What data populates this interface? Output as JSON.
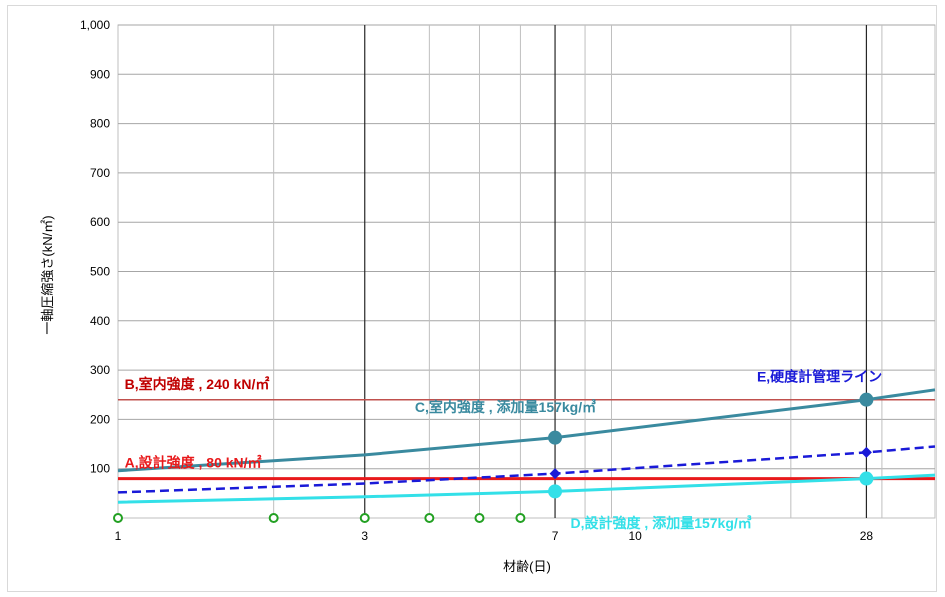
{
  "chart_data": {
    "type": "line",
    "xlabel": "材齢(日)",
    "ylabel": "一軸圧縮強さ(kN/㎡)",
    "x_scale": "log",
    "xlim": [
      1,
      38
    ],
    "ylim": [
      0,
      1000
    ],
    "y_ticks": [
      {
        "value": 100,
        "label": "100"
      },
      {
        "value": 200,
        "label": "200"
      },
      {
        "value": 300,
        "label": "300"
      },
      {
        "value": 400,
        "label": "400"
      },
      {
        "value": 500,
        "label": "500"
      },
      {
        "value": 600,
        "label": "600"
      },
      {
        "value": 700,
        "label": "700"
      },
      {
        "value": 800,
        "label": "800"
      },
      {
        "value": 900,
        "label": "900"
      },
      {
        "value": 1000,
        "label": "1,000"
      }
    ],
    "x_ticks": [
      {
        "value": 1,
        "label": "1"
      },
      {
        "value": 3,
        "label": "3"
      },
      {
        "value": 7,
        "label": "7"
      },
      {
        "value": 10,
        "label": "10"
      },
      {
        "value": 28,
        "label": "28"
      }
    ],
    "x_minor_grid": [
      2,
      4,
      5,
      6,
      8,
      9,
      20,
      30
    ],
    "x_major_grid": [
      3,
      7,
      28
    ],
    "grid": true,
    "series": [
      {
        "id": "A",
        "name": "A,設計強度 , 80 kN/㎡",
        "color": "#e8191b",
        "style": "solid",
        "width": 3,
        "points": [
          [
            1,
            80
          ],
          [
            38,
            80
          ]
        ]
      },
      {
        "id": "B",
        "name": "B,室内強度 , 240 kN/㎡",
        "color": "#c0504d",
        "style": "solid",
        "width": 1.5,
        "points": [
          [
            1,
            240
          ],
          [
            38,
            240
          ]
        ]
      },
      {
        "id": "C",
        "name": "C,室内強度 , 添加量157kg/㎥",
        "color": "#3a8a9f",
        "style": "solid",
        "width": 3,
        "points": [
          [
            1,
            96
          ],
          [
            3,
            128
          ],
          [
            7,
            163
          ],
          [
            28,
            240
          ],
          [
            38,
            260
          ]
        ],
        "markers": [
          [
            7,
            163
          ],
          [
            28,
            240
          ]
        ],
        "marker": "circle"
      },
      {
        "id": "D",
        "name": "D,設計強度 , 添加量157kg/㎥",
        "color": "#33e0e8",
        "style": "solid",
        "width": 3,
        "points": [
          [
            1,
            32
          ],
          [
            3,
            43
          ],
          [
            7,
            54
          ],
          [
            28,
            80
          ],
          [
            38,
            87
          ]
        ],
        "markers": [
          [
            7,
            54
          ],
          [
            28,
            80
          ]
        ],
        "marker": "circle"
      },
      {
        "id": "E",
        "name": "E,硬度計管理ライン",
        "color": "#1a1ad8",
        "style": "dashed",
        "width": 2.5,
        "points": [
          [
            1,
            52
          ],
          [
            3,
            70
          ],
          [
            7,
            90
          ],
          [
            28,
            133
          ],
          [
            38,
            145
          ]
        ],
        "markers": [
          [
            7,
            90
          ],
          [
            28,
            133
          ]
        ],
        "marker": "diamond"
      },
      {
        "id": "X",
        "name": "",
        "color": "#22a022",
        "style": "none",
        "points": [
          [
            1,
            0
          ],
          [
            2,
            0
          ],
          [
            3,
            0
          ],
          [
            4,
            0
          ],
          [
            5,
            0
          ],
          [
            6,
            0
          ]
        ],
        "markers": [
          [
            1,
            0
          ],
          [
            2,
            0
          ],
          [
            3,
            0
          ],
          [
            4,
            0
          ],
          [
            5,
            0
          ],
          [
            6,
            0
          ]
        ],
        "marker": "open-circle"
      }
    ],
    "annotations": [
      {
        "text": "B,室内強度 , 240 kN/㎡",
        "x": 1.03,
        "y": 262,
        "color": "#c00000"
      },
      {
        "text": "C,室内強度 , 添加量157kg/㎥",
        "x": 3.75,
        "y": 215,
        "color": "#3a8a9f"
      },
      {
        "text": "A,設計強度 , 80 kN/㎡",
        "x": 1.03,
        "y": 102,
        "color": "#e8191b"
      },
      {
        "text": "D,設計強度 , 添加量157kg/㎥",
        "x": 7.5,
        "y": -20,
        "color": "#33e0e8"
      },
      {
        "text": "E,硬度計管理ライン",
        "x": 17.2,
        "y": 277,
        "color": "#1a1ad8"
      }
    ]
  }
}
